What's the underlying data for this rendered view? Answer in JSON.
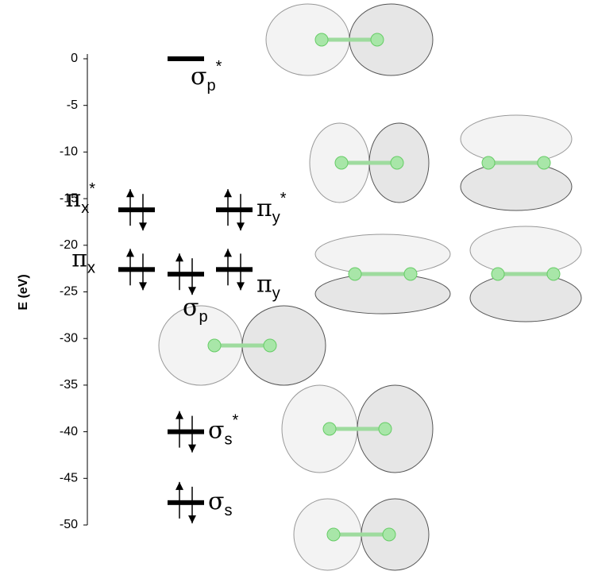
{
  "chart_data": {
    "type": "level",
    "y_label": "E (eV)",
    "ylim": [
      -50,
      0
    ],
    "yticks": [
      0,
      -5,
      -10,
      -15,
      -20,
      -25,
      -30,
      -35,
      -40,
      -45,
      -50
    ],
    "levels": [
      {
        "base": "σ",
        "sub": "p",
        "sup": "*",
        "energy": 0,
        "electrons": 0
      },
      {
        "base": "π",
        "sub": "x",
        "sup": "*",
        "energy": -16.2,
        "electrons": 2
      },
      {
        "base": "π",
        "sub": "y",
        "sup": "*",
        "energy": -16.2,
        "electrons": 2
      },
      {
        "base": "π",
        "sub": "x",
        "energy": -22.6,
        "electrons": 2
      },
      {
        "base": "σ",
        "sub": "p",
        "energy": -23.1,
        "electrons": 2
      },
      {
        "base": "π",
        "sub": "y",
        "energy": -22.6,
        "electrons": 2
      },
      {
        "base": "σ",
        "sub": "s",
        "sup": "*",
        "energy": -40,
        "electrons": 2
      },
      {
        "base": "σ",
        "sub": "s",
        "energy": -47.6,
        "electrons": 2
      }
    ],
    "color": "#000000"
  }
}
